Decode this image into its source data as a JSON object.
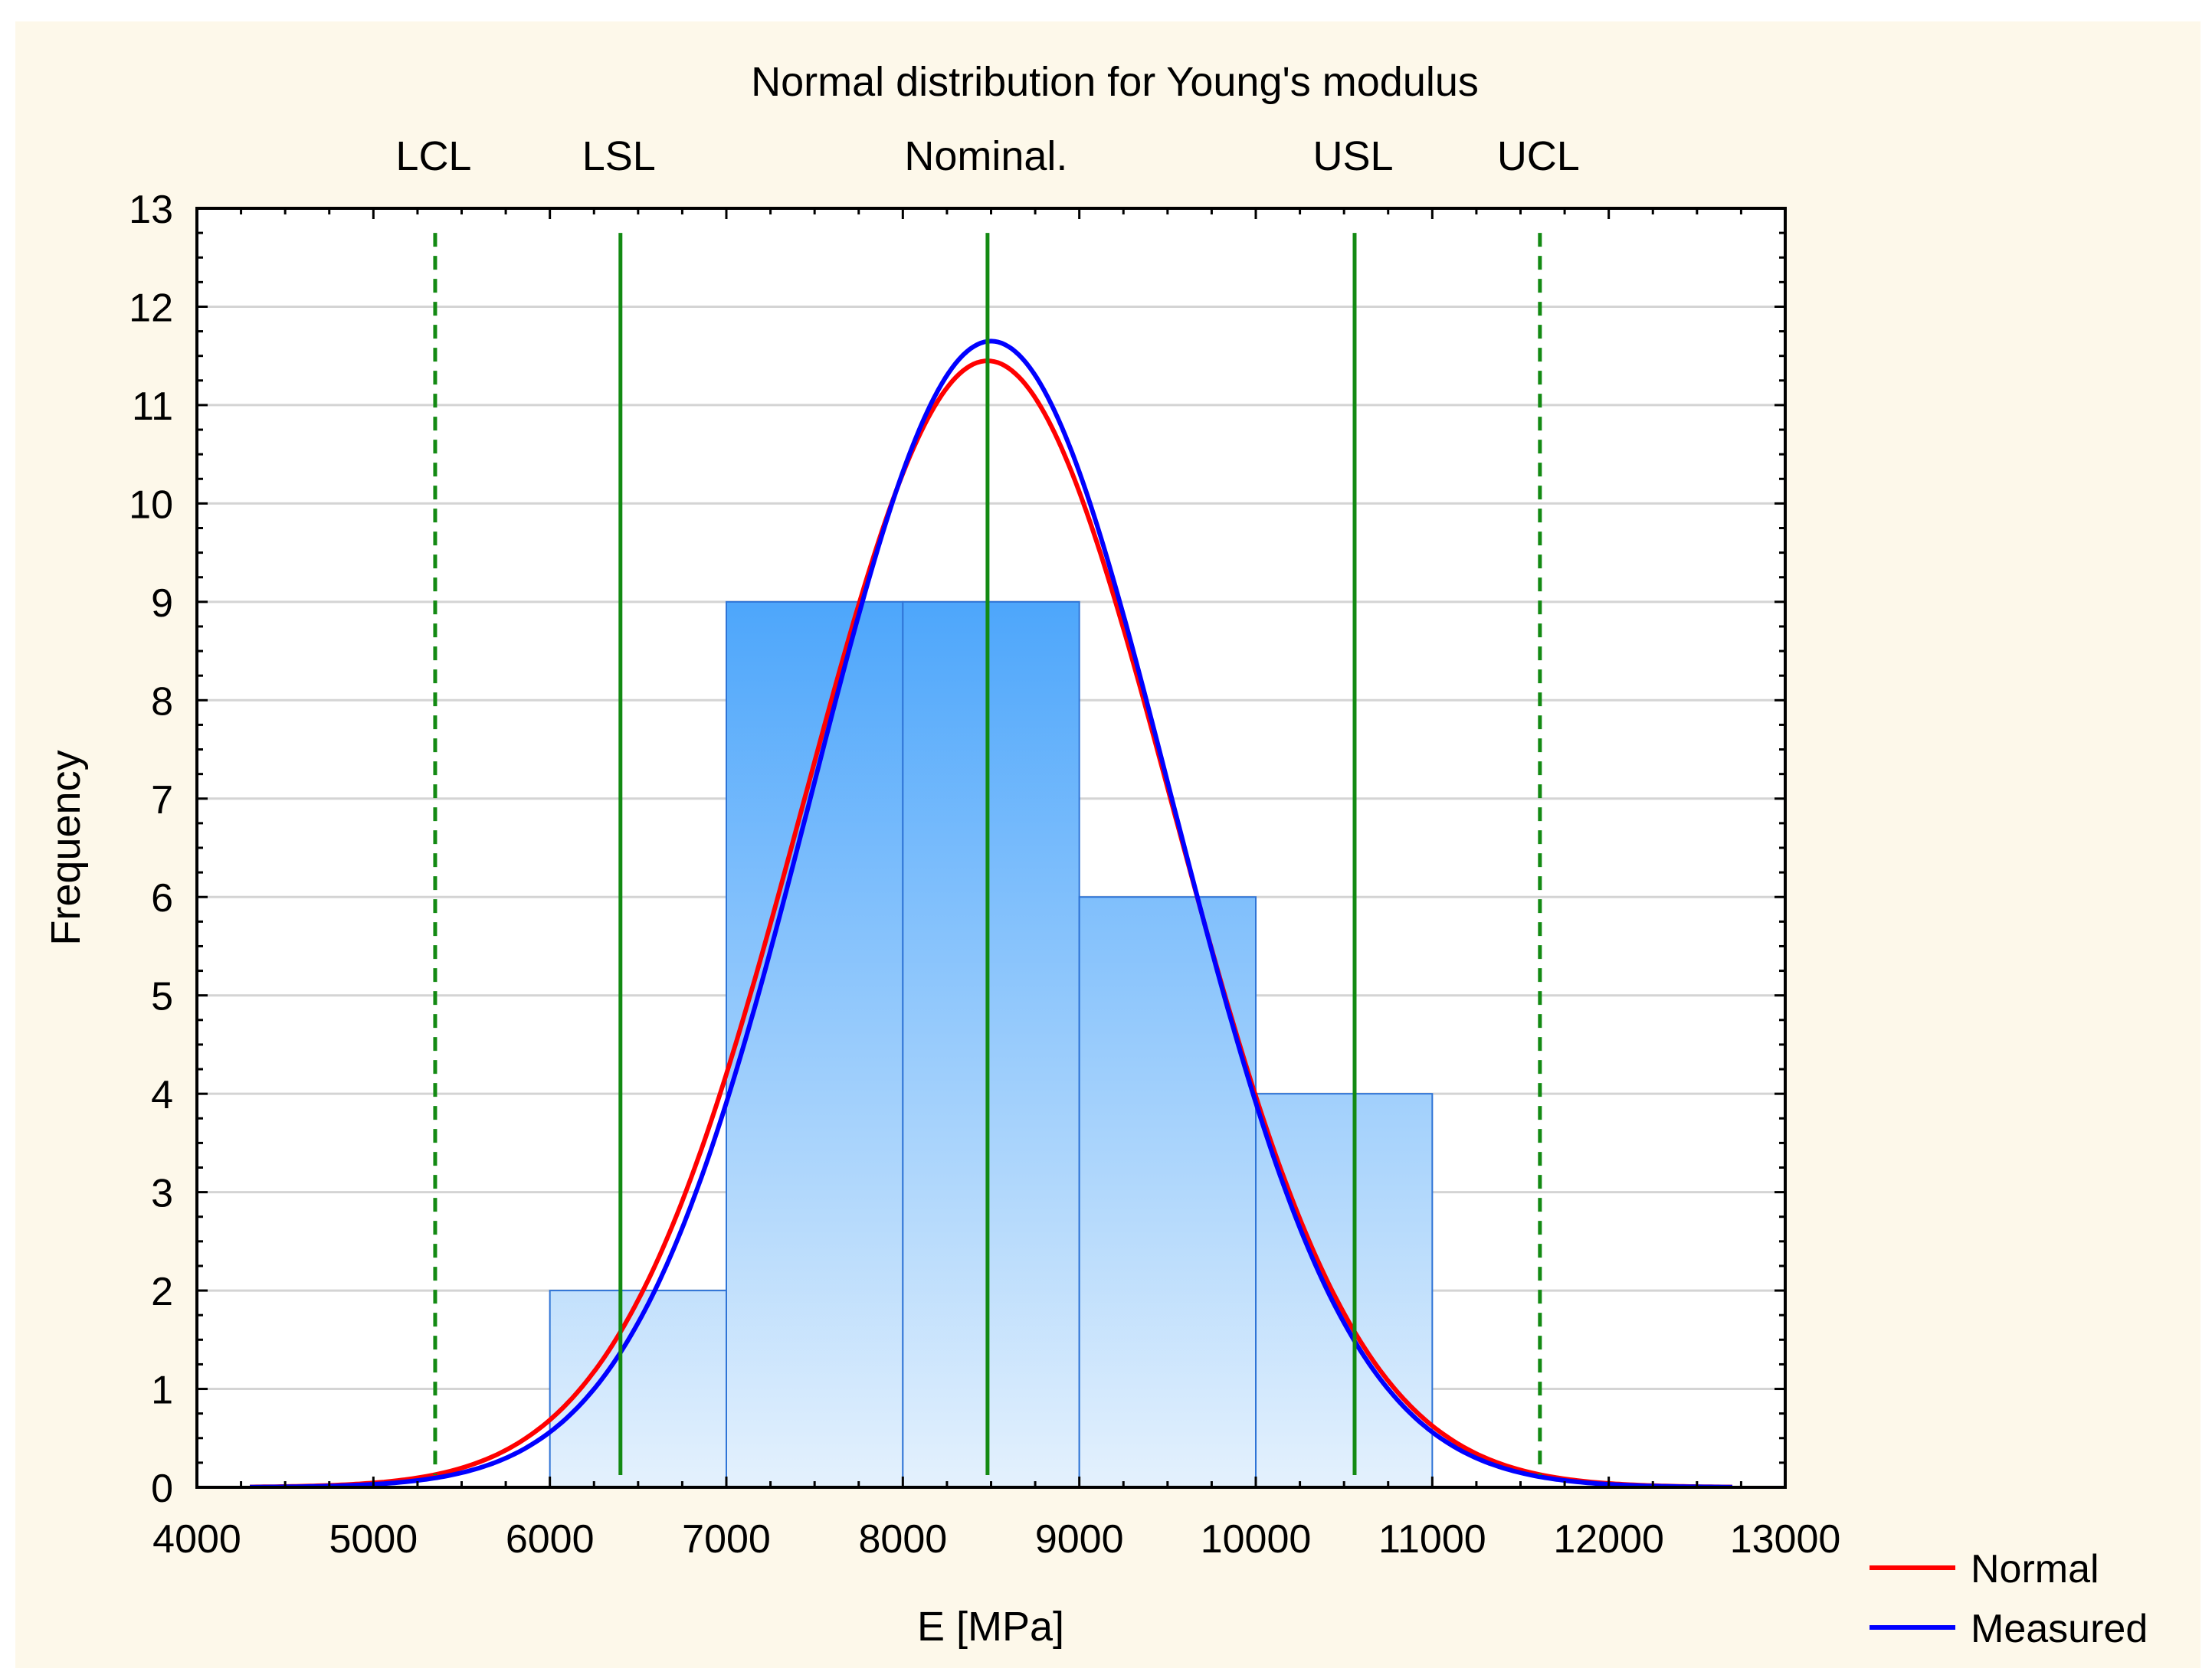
{
  "chart_data": {
    "type": "histogram",
    "title": "Normal distribution for Young's modulus",
    "xlabel": "E [MPa]",
    "ylabel": "Frequency",
    "xlim": [
      4000,
      13000
    ],
    "ylim": [
      0,
      13
    ],
    "x_ticks": [
      "4000",
      "5000",
      "6000",
      "7000",
      "8000",
      "9000",
      "10000",
      "11000",
      "12000",
      "13000"
    ],
    "y_ticks": [
      "0",
      "1",
      "2",
      "3",
      "4",
      "5",
      "6",
      "7",
      "8",
      "9",
      "10",
      "11",
      "12",
      "13"
    ],
    "grid": true,
    "bins": [
      {
        "from": 6000,
        "to": 7000,
        "count": 2
      },
      {
        "from": 7000,
        "to": 8000,
        "count": 9
      },
      {
        "from": 8000,
        "to": 9000,
        "count": 9
      },
      {
        "from": 9000,
        "to": 10000,
        "count": 6
      },
      {
        "from": 10000,
        "to": 11000,
        "count": 4
      }
    ],
    "curves": [
      {
        "name": "Normal",
        "color": "#ff0000",
        "mean": 8480,
        "peak": 11.45,
        "sd": 1045,
        "range": [
          4300,
          12700
        ]
      },
      {
        "name": "Measured",
        "color": "#0000ff",
        "mean": 8500,
        "peak": 11.65,
        "sd": 1015,
        "range": [
          4300,
          12700
        ]
      }
    ],
    "reference_lines": [
      {
        "label": "LCL",
        "value": 5350,
        "style": "dashed"
      },
      {
        "label": "LSL",
        "value": 6400,
        "style": "solid"
      },
      {
        "label": "Nominal.",
        "value": 8480,
        "style": "solid"
      },
      {
        "label": "USL",
        "value": 10560,
        "style": "solid"
      },
      {
        "label": "UCL",
        "value": 11610,
        "style": "dashed"
      }
    ],
    "legend": {
      "position": "bottom-right",
      "entries": [
        "Normal",
        "Measured"
      ]
    },
    "colors": {
      "background": "#fdf8ea",
      "plot_background": "#ffffff",
      "bar_top": "#4da6fb",
      "bar_bottom": "#e4f1fd",
      "bar_edge": "#2f74d6",
      "grid": "#d4d4d4",
      "reference_line": "#138a13"
    }
  }
}
